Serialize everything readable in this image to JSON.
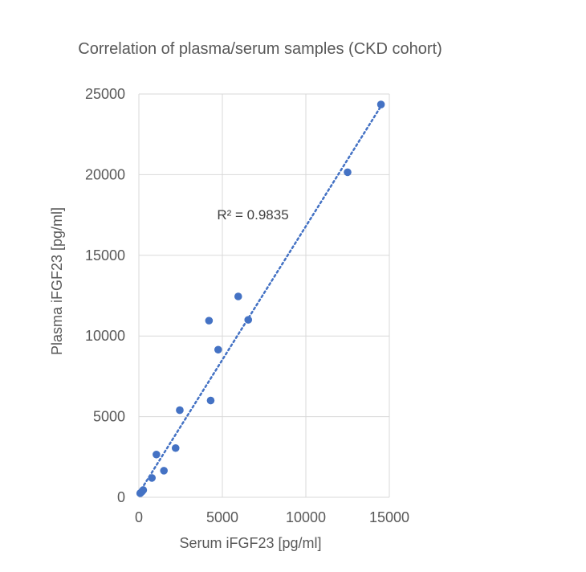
{
  "chart_data": {
    "type": "scatter",
    "title": "Correlation of plasma/serum samples (CKD cohort)",
    "xlabel": "Serum iFGF23 [pg/ml]",
    "ylabel": "Plasma iFGF23 [pg/ml]",
    "xlim": [
      0,
      15000
    ],
    "ylim": [
      0,
      25000
    ],
    "xticks": [
      0,
      5000,
      10000,
      15000
    ],
    "yticks": [
      0,
      5000,
      10000,
      15000,
      20000,
      25000
    ],
    "grid": true,
    "series": [
      {
        "color": "#4472C4",
        "points": [
          {
            "x": 80,
            "y": 250
          },
          {
            "x": 180,
            "y": 350
          },
          {
            "x": 260,
            "y": 450
          },
          {
            "x": 780,
            "y": 1200
          },
          {
            "x": 1050,
            "y": 2650
          },
          {
            "x": 1500,
            "y": 1650
          },
          {
            "x": 2200,
            "y": 3050
          },
          {
            "x": 2450,
            "y": 5400
          },
          {
            "x": 4200,
            "y": 10950
          },
          {
            "x": 4300,
            "y": 6000
          },
          {
            "x": 4750,
            "y": 9150
          },
          {
            "x": 5950,
            "y": 12450
          },
          {
            "x": 6550,
            "y": 11000
          },
          {
            "x": 12500,
            "y": 20150
          },
          {
            "x": 14500,
            "y": 24350
          }
        ]
      }
    ],
    "trendline": {
      "type": "linear",
      "style": "dotted",
      "color": "#4472C4",
      "x_range": [
        0,
        14600
      ],
      "slope": 1.655,
      "intercept": 250,
      "label": "R² = 0.9835"
    }
  }
}
